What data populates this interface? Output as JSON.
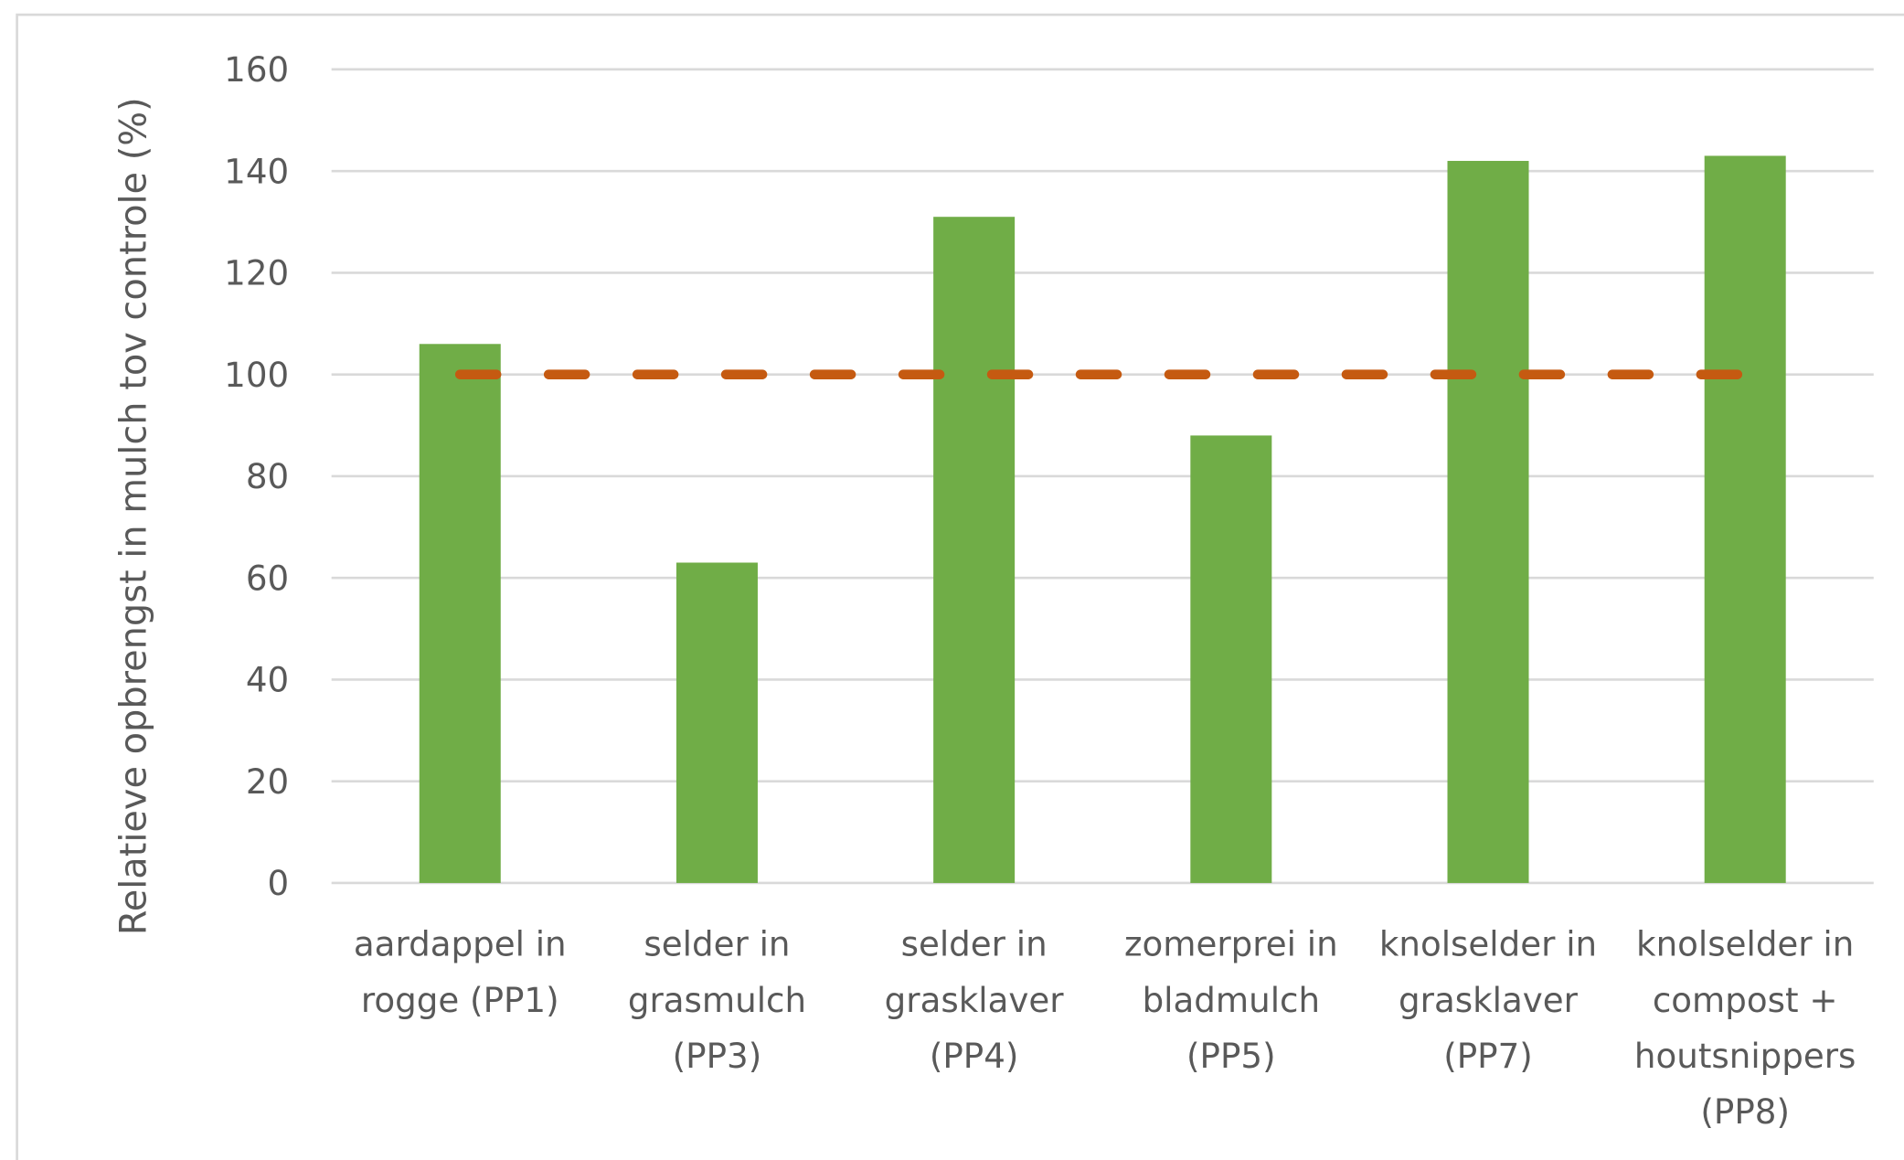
{
  "chart_data": {
    "type": "bar",
    "y_label": "Relatieve opbrengst in mulch tov controle (%)",
    "categories": [
      "aardappel in rogge (PP1)",
      "selder in grasmulch (PP3)",
      "selder in grasklaver (PP4)",
      "zomerprei in bladmulch (PP5)",
      "knolselder in grasklaver (PP7)",
      "knolselder in compost + houtsnippers (PP8)"
    ],
    "series": [
      {
        "type": "bar",
        "color": "#70ad47",
        "values": [
          106,
          63,
          131,
          88,
          142,
          143
        ]
      },
      {
        "type": "line",
        "color": "#c55a11",
        "dashed": true,
        "values": [
          100,
          100,
          100,
          100,
          100,
          100
        ]
      }
    ],
    "ylim": [
      0,
      160
    ],
    "yticks": [
      0,
      20,
      40,
      60,
      80,
      100,
      120,
      140,
      160
    ],
    "grid": true
  }
}
